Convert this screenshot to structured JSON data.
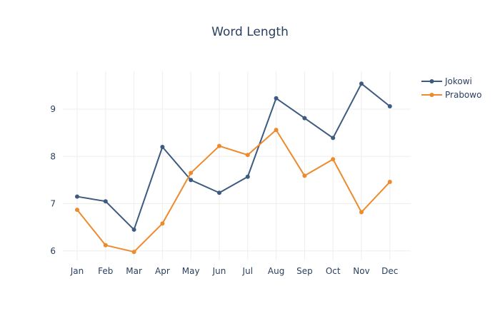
{
  "chart_data": {
    "type": "line",
    "title": "Word Length",
    "xlabel": "",
    "ylabel": "",
    "categories": [
      "Jan",
      "Feb",
      "Mar",
      "Apr",
      "May",
      "Jun",
      "Jul",
      "Aug",
      "Sep",
      "Oct",
      "Nov",
      "Dec"
    ],
    "yticks": [
      6,
      7,
      8,
      9
    ],
    "ylim": [
      5.8,
      9.8
    ],
    "grid": true,
    "legend_position": "top-right",
    "series": [
      {
        "name": "Jokowi",
        "color": "#3d5a80",
        "values": [
          7.15,
          7.05,
          6.45,
          8.2,
          7.5,
          7.23,
          7.57,
          9.23,
          8.81,
          8.39,
          9.54,
          9.06
        ]
      },
      {
        "name": "Prabowo",
        "color": "#ee8a2e",
        "values": [
          6.87,
          6.12,
          5.98,
          6.58,
          7.65,
          8.22,
          8.03,
          8.56,
          7.59,
          7.94,
          6.82,
          7.46
        ]
      }
    ]
  }
}
